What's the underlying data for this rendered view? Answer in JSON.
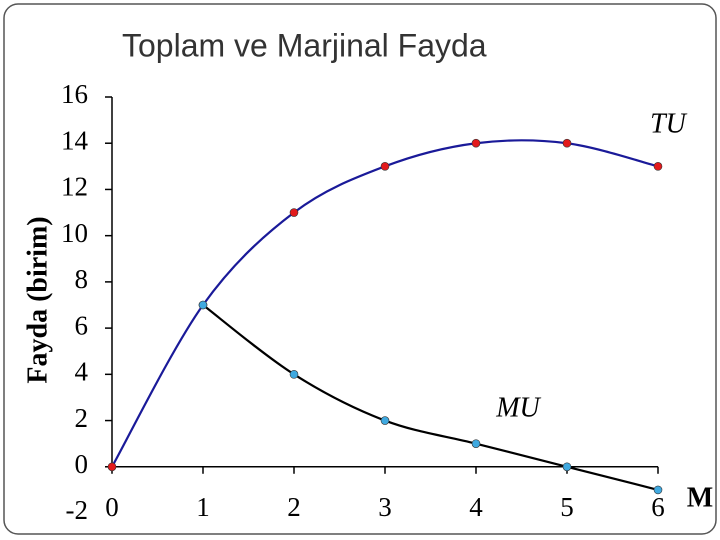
{
  "chart_data": {
    "type": "line",
    "title": "Toplam ve Marjinal Fayda",
    "ylabel": "Fayda (birim)",
    "xlabel": "M",
    "x": [
      0,
      1,
      2,
      3,
      4,
      5,
      6
    ],
    "series": [
      {
        "name": "TU",
        "color": "#1a1a99",
        "marker_color": "#e31a1c",
        "values": [
          0,
          7,
          11,
          13,
          14,
          14,
          13
        ]
      },
      {
        "name": "MU",
        "color": "#000000",
        "marker_color": "#3fa9e0",
        "values": [
          null,
          7,
          4,
          2,
          1,
          0,
          -1
        ]
      }
    ],
    "xlim": [
      0,
      6
    ],
    "xticks": [
      0,
      1,
      2,
      3,
      4,
      5,
      6
    ],
    "ylim": [
      -2,
      16
    ],
    "yticks": [
      -2,
      0,
      2,
      4,
      6,
      8,
      10,
      12,
      14,
      16
    ]
  }
}
